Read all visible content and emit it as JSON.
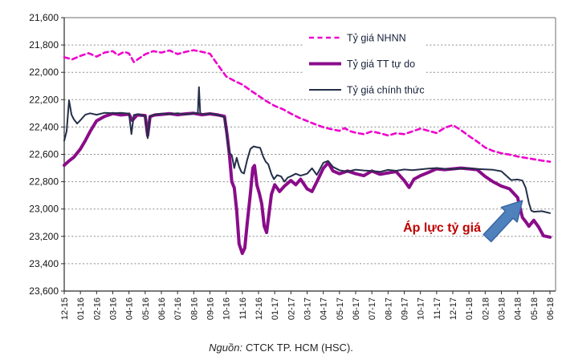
{
  "chart_data": {
    "type": "line",
    "title": "",
    "x_unit": "month (MM-YY)",
    "x_axis": {
      "tick_labels": [
        "12-15",
        "01-16",
        "02-16",
        "03-16",
        "04-16",
        "05-16",
        "06-16",
        "07-16",
        "08-16",
        "09-16",
        "10-16",
        "11-16",
        "12-16",
        "01-17",
        "02-17",
        "03-17",
        "04-17",
        "05-17",
        "06-17",
        "07-17",
        "08-17",
        "09-17",
        "10-17",
        "11-17",
        "12-17",
        "01-18",
        "02-18",
        "03-18",
        "04-18",
        "05-18",
        "06-18"
      ],
      "label_rotation": -90
    },
    "y_axis": {
      "min": 21600,
      "max": 23600,
      "step": 200,
      "direction": "inverted",
      "tick_labels": [
        "21,600",
        "21,800",
        "22,000",
        "22,200",
        "22,400",
        "22,600",
        "22,800",
        "23,000",
        "23,200",
        "23,400",
        "23,600"
      ]
    },
    "legend": {
      "position": "inside-top-center"
    },
    "series": [
      {
        "id": "nhnn",
        "name": "Tỷ giá NHNN",
        "color": "#EE00CC",
        "line": "dashed",
        "width": 2.6,
        "points": [
          [
            0,
            21890
          ],
          [
            0.5,
            21905
          ],
          [
            1,
            21880
          ],
          [
            1.5,
            21860
          ],
          [
            2,
            21885
          ],
          [
            2.5,
            21855
          ],
          [
            3,
            21845
          ],
          [
            3.3,
            21875
          ],
          [
            3.7,
            21850
          ],
          [
            4,
            21862
          ],
          [
            4.3,
            21925
          ],
          [
            4.7,
            21892
          ],
          [
            5,
            21868
          ],
          [
            5.5,
            21845
          ],
          [
            6,
            21856
          ],
          [
            6.5,
            21840
          ],
          [
            7,
            21866
          ],
          [
            7.5,
            21850
          ],
          [
            8,
            21838
          ],
          [
            8.5,
            21850
          ],
          [
            9,
            21864
          ],
          [
            9.5,
            21948
          ],
          [
            10,
            22030
          ],
          [
            10.5,
            22062
          ],
          [
            11,
            22090
          ],
          [
            11.5,
            22132
          ],
          [
            12,
            22172
          ],
          [
            12.5,
            22212
          ],
          [
            13,
            22246
          ],
          [
            13.5,
            22270
          ],
          [
            14,
            22302
          ],
          [
            14.5,
            22332
          ],
          [
            15,
            22356
          ],
          [
            15.5,
            22380
          ],
          [
            16,
            22402
          ],
          [
            16.5,
            22416
          ],
          [
            17,
            22428
          ],
          [
            17.3,
            22408
          ],
          [
            17.7,
            22432
          ],
          [
            18,
            22442
          ],
          [
            18.5,
            22452
          ],
          [
            19,
            22432
          ],
          [
            19.5,
            22446
          ],
          [
            20,
            22462
          ],
          [
            20.5,
            22446
          ],
          [
            21,
            22452
          ],
          [
            21.5,
            22432
          ],
          [
            22,
            22412
          ],
          [
            22.5,
            22428
          ],
          [
            23,
            22444
          ],
          [
            23.5,
            22406
          ],
          [
            24,
            22386
          ],
          [
            24.5,
            22422
          ],
          [
            25,
            22466
          ],
          [
            25.5,
            22506
          ],
          [
            26,
            22550
          ],
          [
            26.5,
            22576
          ],
          [
            27,
            22592
          ],
          [
            27.5,
            22602
          ],
          [
            28,
            22616
          ],
          [
            28.5,
            22626
          ],
          [
            29,
            22636
          ],
          [
            29.5,
            22646
          ],
          [
            30,
            22654
          ]
        ]
      },
      {
        "id": "tt-tu-do",
        "name": "Tỷ giá TT tự do",
        "color": "#8A0C8A",
        "line": "solid",
        "width": 4,
        "points": [
          [
            0,
            22680
          ],
          [
            0.3,
            22648
          ],
          [
            0.6,
            22620
          ],
          [
            1,
            22560
          ],
          [
            1.3,
            22500
          ],
          [
            1.6,
            22432
          ],
          [
            2,
            22355
          ],
          [
            2.5,
            22322
          ],
          [
            3,
            22302
          ],
          [
            3.5,
            22312
          ],
          [
            4,
            22306
          ],
          [
            4.2,
            22352
          ],
          [
            4.5,
            22312
          ],
          [
            5,
            22316
          ],
          [
            5.15,
            22462
          ],
          [
            5.3,
            22324
          ],
          [
            5.6,
            22312
          ],
          [
            6,
            22308
          ],
          [
            6.5,
            22302
          ],
          [
            7,
            22310
          ],
          [
            7.5,
            22304
          ],
          [
            8,
            22300
          ],
          [
            8.5,
            22310
          ],
          [
            9,
            22304
          ],
          [
            9.5,
            22312
          ],
          [
            9.9,
            22322
          ],
          [
            10.05,
            22450
          ],
          [
            10.2,
            22600
          ],
          [
            10.35,
            22800
          ],
          [
            10.5,
            22845
          ],
          [
            10.65,
            23010
          ],
          [
            10.8,
            23255
          ],
          [
            11,
            23325
          ],
          [
            11.15,
            23285
          ],
          [
            11.3,
            23105
          ],
          [
            11.5,
            22885
          ],
          [
            11.65,
            22700
          ],
          [
            11.75,
            22682
          ],
          [
            11.9,
            22825
          ],
          [
            12.05,
            22885
          ],
          [
            12.2,
            22962
          ],
          [
            12.35,
            23125
          ],
          [
            12.5,
            23172
          ],
          [
            12.65,
            23032
          ],
          [
            12.8,
            22892
          ],
          [
            13,
            22822
          ],
          [
            13.3,
            22872
          ],
          [
            13.6,
            22832
          ],
          [
            14,
            22792
          ],
          [
            14.3,
            22822
          ],
          [
            14.6,
            22782
          ],
          [
            15,
            22852
          ],
          [
            15.3,
            22872
          ],
          [
            15.6,
            22802
          ],
          [
            16,
            22702
          ],
          [
            16.3,
            22662
          ],
          [
            16.6,
            22722
          ],
          [
            17,
            22742
          ],
          [
            17.5,
            22722
          ],
          [
            18,
            22742
          ],
          [
            18.5,
            22756
          ],
          [
            19,
            22722
          ],
          [
            19.5,
            22746
          ],
          [
            20,
            22736
          ],
          [
            20.5,
            22726
          ],
          [
            21,
            22792
          ],
          [
            21.3,
            22842
          ],
          [
            21.6,
            22782
          ],
          [
            22,
            22756
          ],
          [
            22.5,
            22732
          ],
          [
            23,
            22706
          ],
          [
            23.5,
            22712
          ],
          [
            24,
            22706
          ],
          [
            24.5,
            22700
          ],
          [
            25,
            22706
          ],
          [
            25.5,
            22712
          ],
          [
            26,
            22762
          ],
          [
            26.5,
            22802
          ],
          [
            27,
            22832
          ],
          [
            27.5,
            22852
          ],
          [
            28,
            22916
          ],
          [
            28.3,
            23062
          ],
          [
            28.5,
            23092
          ],
          [
            28.7,
            23126
          ],
          [
            29,
            23082
          ],
          [
            29.3,
            23132
          ],
          [
            29.6,
            23196
          ],
          [
            30,
            23206
          ]
        ]
      },
      {
        "id": "chinh-thuc",
        "name": "Tỷ giá chính thức",
        "color": "#242F49",
        "line": "solid",
        "width": 2,
        "points": [
          [
            0,
            22500
          ],
          [
            0.15,
            22430
          ],
          [
            0.3,
            22205
          ],
          [
            0.45,
            22310
          ],
          [
            0.6,
            22345
          ],
          [
            0.8,
            22375
          ],
          [
            1,
            22350
          ],
          [
            1.3,
            22310
          ],
          [
            1.6,
            22300
          ],
          [
            2,
            22310
          ],
          [
            2.5,
            22296
          ],
          [
            3,
            22300
          ],
          [
            3.5,
            22296
          ],
          [
            4,
            22302
          ],
          [
            4.15,
            22452
          ],
          [
            4.3,
            22312
          ],
          [
            4.6,
            22306
          ],
          [
            5,
            22320
          ],
          [
            5.15,
            22482
          ],
          [
            5.3,
            22322
          ],
          [
            5.6,
            22310
          ],
          [
            6,
            22302
          ],
          [
            6.5,
            22306
          ],
          [
            7,
            22300
          ],
          [
            7.5,
            22308
          ],
          [
            8,
            22300
          ],
          [
            8.25,
            22300
          ],
          [
            8.32,
            22108
          ],
          [
            8.4,
            22300
          ],
          [
            8.7,
            22308
          ],
          [
            9,
            22300
          ],
          [
            9.5,
            22312
          ],
          [
            9.9,
            22330
          ],
          [
            10.06,
            22480
          ],
          [
            10.2,
            22590
          ],
          [
            10.35,
            22605
          ],
          [
            10.5,
            22700
          ],
          [
            10.65,
            22625
          ],
          [
            10.8,
            22690
          ],
          [
            10.95,
            22730
          ],
          [
            11.1,
            22740
          ],
          [
            11.3,
            22640
          ],
          [
            11.5,
            22560
          ],
          [
            11.7,
            22542
          ],
          [
            11.9,
            22548
          ],
          [
            12.1,
            22552
          ],
          [
            12.3,
            22620
          ],
          [
            12.45,
            22655
          ],
          [
            12.6,
            22672
          ],
          [
            12.8,
            22745
          ],
          [
            12.95,
            22782
          ],
          [
            13.15,
            22752
          ],
          [
            13.4,
            22762
          ],
          [
            13.6,
            22800
          ],
          [
            13.8,
            22770
          ],
          [
            14,
            22760
          ],
          [
            14.3,
            22742
          ],
          [
            14.6,
            22756
          ],
          [
            15,
            22742
          ],
          [
            15.3,
            22702
          ],
          [
            15.6,
            22750
          ],
          [
            16,
            22662
          ],
          [
            16.3,
            22648
          ],
          [
            16.6,
            22692
          ],
          [
            17,
            22716
          ],
          [
            17.5,
            22726
          ],
          [
            18,
            22712
          ],
          [
            18.5,
            22718
          ],
          [
            19,
            22722
          ],
          [
            19.5,
            22728
          ],
          [
            20,
            22714
          ],
          [
            20.5,
            22720
          ],
          [
            21,
            22711
          ],
          [
            21.5,
            22716
          ],
          [
            22,
            22710
          ],
          [
            22.5,
            22704
          ],
          [
            23,
            22700
          ],
          [
            23.5,
            22706
          ],
          [
            24,
            22708
          ],
          [
            24.5,
            22704
          ],
          [
            25,
            22702
          ],
          [
            25.5,
            22707
          ],
          [
            26,
            22710
          ],
          [
            26.5,
            22713
          ],
          [
            27,
            22724
          ],
          [
            27.3,
            22756
          ],
          [
            27.6,
            22788
          ],
          [
            28,
            22784
          ],
          [
            28.3,
            22792
          ],
          [
            28.5,
            22846
          ],
          [
            28.7,
            22956
          ],
          [
            28.85,
            23012
          ],
          [
            29,
            23020
          ],
          [
            29.5,
            23016
          ],
          [
            30,
            23030
          ]
        ]
      }
    ],
    "annotation": {
      "text": "Áp lực tỷ giá",
      "text_color": "#C00000",
      "arrow_fill": "#4F81BD",
      "arrow_stroke": "#3A67A4"
    },
    "source_note_label": "Nguồn:",
    "source_note_text": "CTCK TP. HCM (HSC)."
  }
}
